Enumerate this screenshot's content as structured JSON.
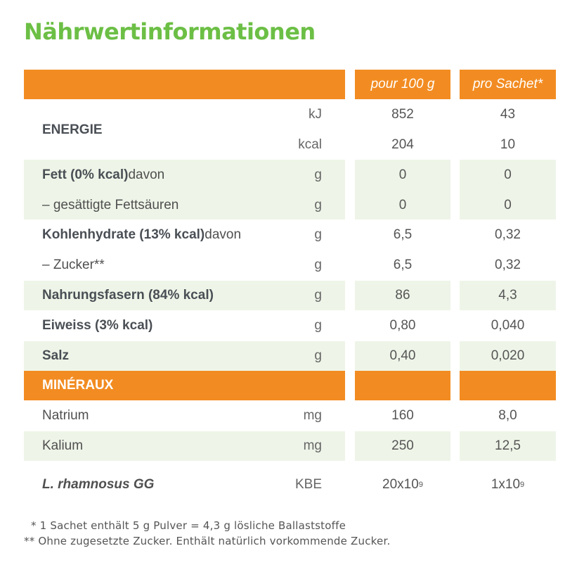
{
  "title": "Nährwertinformationen",
  "header": {
    "col1": "pour 100 g",
    "col2": "pro Sachet*"
  },
  "energy": {
    "label": "ENERGIE",
    "rows": [
      {
        "unit": "kJ",
        "v1": "852",
        "v2": "43"
      },
      {
        "unit": "kcal",
        "v1": "204",
        "v2": "10"
      }
    ]
  },
  "rows": [
    {
      "bold": "Fett (0% kcal)",
      "rest": " davon",
      "unit": "g",
      "v1": "0",
      "v2": "0"
    },
    {
      "bold": "",
      "rest": "– gesättigte Fettsäuren",
      "unit": "g",
      "v1": "0",
      "v2": "0"
    },
    {
      "bold": "Kohlenhydrate (13% kcal)",
      "rest": " davon",
      "unit": "g",
      "v1": "6,5",
      "v2": "0,32"
    },
    {
      "bold": "",
      "rest": "– Zucker**",
      "unit": "g",
      "v1": "6,5",
      "v2": "0,32"
    },
    {
      "bold": "Nahrungsfasern (84% kcal)",
      "rest": "",
      "unit": "g",
      "v1": "86",
      "v2": "4,3"
    },
    {
      "bold": "Eiweiss (3% kcal)",
      "rest": "",
      "unit": "g",
      "v1": "0,80",
      "v2": "0,040"
    },
    {
      "bold": "Salz",
      "rest": "",
      "unit": "g",
      "v1": "0,40",
      "v2": "0,020"
    }
  ],
  "minerals": {
    "label": "MINÉRAUX",
    "rows": [
      {
        "label": "Natrium",
        "unit": "mg",
        "v1": "160",
        "v2": "8,0"
      },
      {
        "label": "Kalium",
        "unit": "mg",
        "v1": "250",
        "v2": "12,5"
      }
    ]
  },
  "probiotic": {
    "label": "L. rhamnosus GG",
    "unit": "KBE",
    "v1_base": "20x10",
    "v1_exp": "9",
    "v2_base": "1x10",
    "v2_exp": "9"
  },
  "footnotes": [
    "* 1 Sachet enthält 5 g Pulver = 4,3 g lösliche Ballaststoffe",
    "** Ohne zugesetzte Zucker. Enthält natürlich vorkommende Zucker."
  ],
  "colors": {
    "orange": "#f28c22",
    "green_title": "#6cbf45",
    "band": "#eef5e8"
  }
}
